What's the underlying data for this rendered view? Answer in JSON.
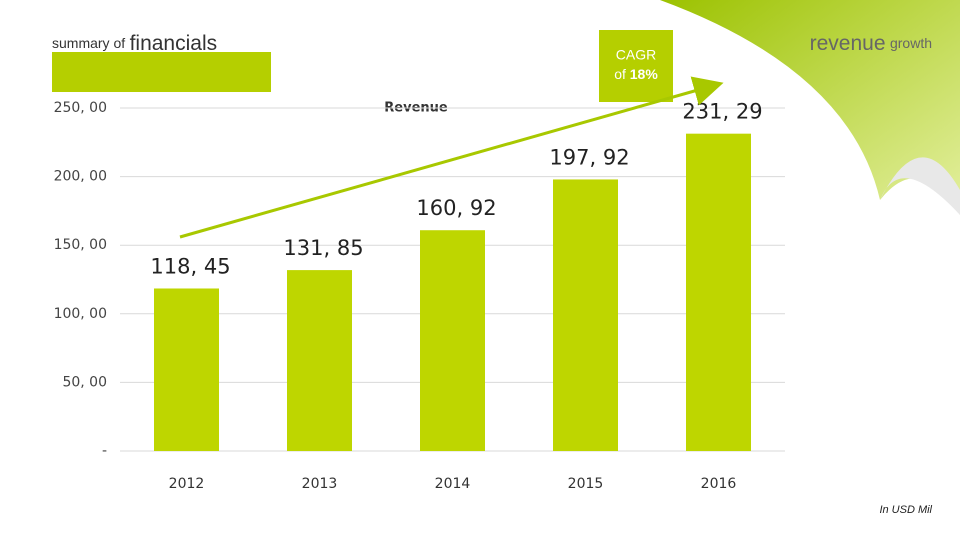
{
  "chart_data": {
    "type": "bar",
    "title": "summary of",
    "title_emphasis": "financials",
    "subtitle": "revenue",
    "subtitle_small": "growth",
    "annotation": {
      "line1": "CAGR",
      "line2": "of",
      "highlight": "18%"
    },
    "note": "In USD Mil",
    "categories": [
      "2012",
      "2013",
      "2014",
      "2015",
      "2016"
    ],
    "series": [
      {
        "name": "Revenue",
        "color": "#bed600",
        "values": [
          118.45,
          131.85,
          160.92,
          197.92,
          231.29
        ],
        "value_labels": [
          "118, 45",
          "131, 85",
          "160, 92",
          "197, 92",
          "231, 29"
        ]
      }
    ],
    "ylim": [
      0,
      250
    ],
    "yticks": [
      {
        "value": 0,
        "label": "-"
      },
      {
        "value": 50,
        "label": "50, 00"
      },
      {
        "value": 100,
        "label": "100, 00"
      },
      {
        "value": 150,
        "label": "150, 00"
      },
      {
        "value": 200,
        "label": "200, 00"
      },
      {
        "value": 250,
        "label": "250, 00"
      }
    ],
    "grid": true
  }
}
